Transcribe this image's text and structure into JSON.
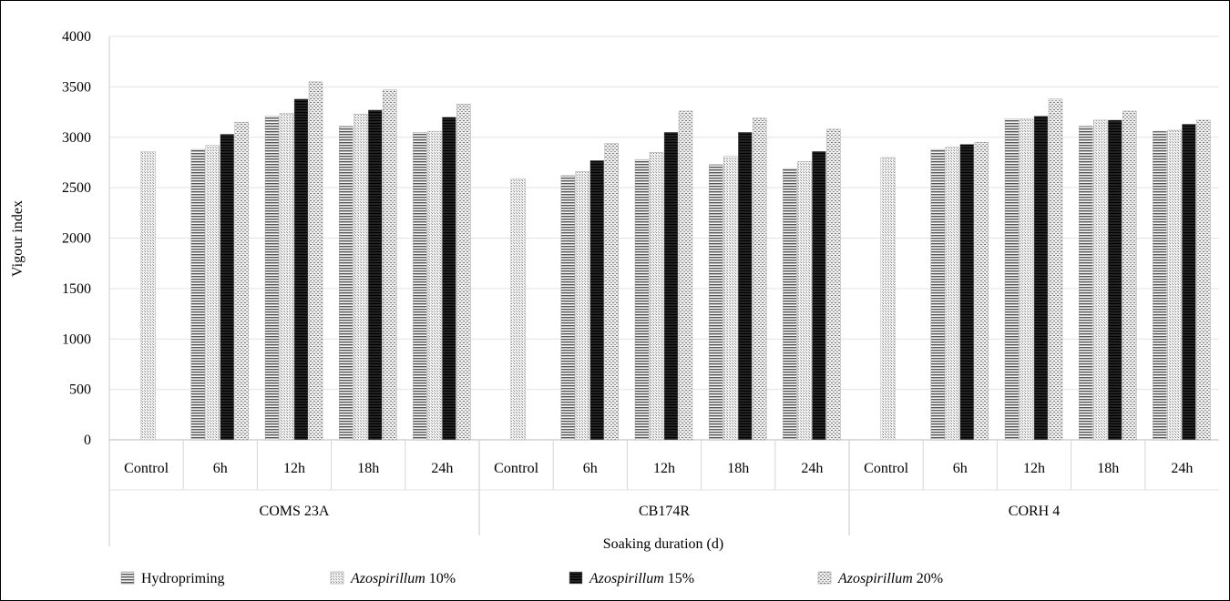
{
  "chart_data": {
    "type": "bar",
    "ylabel": "Vigour index",
    "xlabel": "Soaking duration (d)",
    "ylim": [
      0,
      4000
    ],
    "yticks": [
      0,
      500,
      1000,
      1500,
      2000,
      2500,
      3000,
      3500,
      4000
    ],
    "grid": true,
    "legend_position": "bottom",
    "groups": [
      {
        "name": "COMS 23A",
        "categories": [
          "Control",
          "6h",
          "12h",
          "18h",
          "24h"
        ],
        "control": 2860,
        "series": [
          {
            "name": "Hydropriming",
            "values": [
              2880,
              3210,
              3110,
              3050
            ]
          },
          {
            "name": "Azospirillum 10%",
            "values": [
              2920,
              3240,
              3230,
              3060
            ]
          },
          {
            "name": "Azospirillum 15%",
            "values": [
              3030,
              3380,
              3270,
              3200
            ]
          },
          {
            "name": "Azospirillum 20%",
            "values": [
              3150,
              3550,
              3470,
              3330
            ]
          }
        ]
      },
      {
        "name": "CB174R",
        "categories": [
          "Control",
          "6h",
          "12h",
          "18h",
          "24h"
        ],
        "control": 2590,
        "series": [
          {
            "name": "Hydropriming",
            "values": [
              2620,
              2780,
              2730,
              2690
            ]
          },
          {
            "name": "Azospirillum 10%",
            "values": [
              2660,
              2850,
              2810,
              2760
            ]
          },
          {
            "name": "Azospirillum 15%",
            "values": [
              2770,
              3050,
              3050,
              2860
            ]
          },
          {
            "name": "Azospirillum 20%",
            "values": [
              2940,
              3260,
              3190,
              3080
            ]
          }
        ]
      },
      {
        "name": "CORH 4",
        "categories": [
          "Control",
          "6h",
          "12h",
          "18h",
          "24h"
        ],
        "control": 2800,
        "series": [
          {
            "name": "Hydropriming",
            "values": [
              2880,
              3180,
              3110,
              3060
            ]
          },
          {
            "name": "Azospirillum 10%",
            "values": [
              2900,
              3180,
              3170,
              3070
            ]
          },
          {
            "name": "Azospirillum 15%",
            "values": [
              2930,
              3210,
              3170,
              3130
            ]
          },
          {
            "name": "Azospirillum 20%",
            "values": [
              2950,
              3380,
              3260,
              3170
            ]
          }
        ]
      }
    ],
    "legend": [
      {
        "prefix": "",
        "name": "Hydropriming",
        "suffix": "",
        "pattern": "pat-hydro"
      },
      {
        "prefix": "",
        "name": "Azospirillum",
        "suffix": " 10%",
        "pattern": "pat-az10"
      },
      {
        "prefix": "",
        "name": "Azospirillum",
        "suffix": " 15%",
        "pattern": "pat-az15"
      },
      {
        "prefix": "",
        "name": "Azospirillum",
        "suffix": " 20%",
        "pattern": "pat-az20"
      }
    ]
  }
}
